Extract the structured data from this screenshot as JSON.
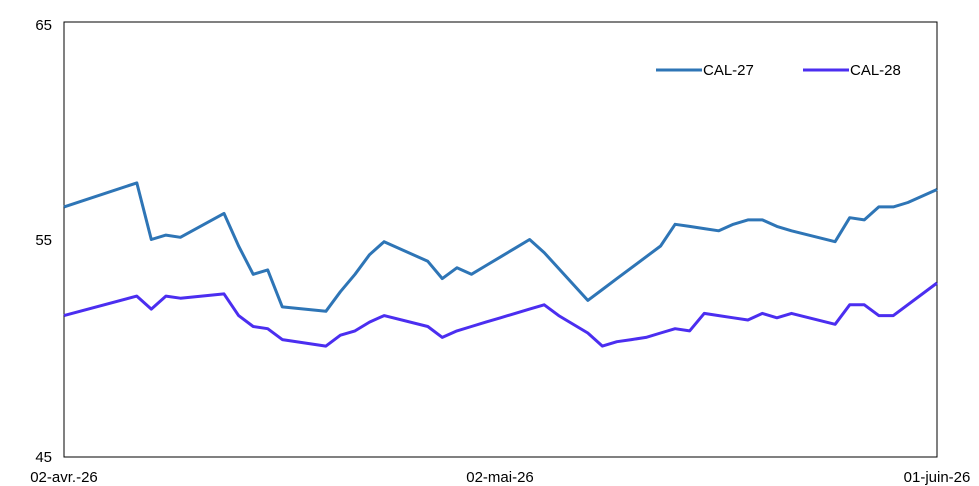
{
  "chart_data": {
    "type": "line",
    "x_tick_labels": [
      "02-avr.-26",
      "02-mai-26",
      "01-juin-26"
    ],
    "y_tick_labels": [
      "45",
      "55",
      "65"
    ],
    "ylim": [
      45,
      65
    ],
    "xlim_days": [
      0,
      60
    ],
    "grid": false,
    "legend_position": "top-right",
    "series": [
      {
        "name": "CAL-27",
        "color": "#2e75b6",
        "x": [
          0,
          5,
          6,
          7,
          8,
          11,
          12,
          13,
          14,
          15,
          18,
          19,
          20,
          21,
          22,
          25,
          26,
          27,
          28,
          29,
          30,
          31,
          32,
          33,
          36,
          37,
          38,
          41,
          42,
          43,
          44,
          45,
          46,
          47,
          48,
          49,
          50,
          53,
          54,
          55,
          56,
          57,
          58,
          60
        ],
        "values": [
          56.5,
          57.6,
          55.0,
          55.2,
          55.1,
          56.2,
          54.7,
          53.4,
          53.6,
          51.9,
          51.7,
          52.6,
          53.4,
          54.3,
          54.9,
          54.0,
          53.2,
          53.7,
          53.4,
          53.8,
          54.2,
          54.6,
          55.0,
          54.4,
          52.2,
          52.7,
          53.2,
          54.7,
          55.7,
          55.6,
          55.5,
          55.4,
          55.7,
          55.9,
          55.9,
          55.6,
          55.4,
          54.9,
          56.0,
          55.9,
          56.5,
          56.5,
          56.7,
          57.3
        ]
      },
      {
        "name": "CAL-28",
        "color": "#4b2ef0",
        "x": [
          0,
          5,
          6,
          7,
          8,
          11,
          12,
          13,
          14,
          15,
          18,
          19,
          20,
          21,
          22,
          25,
          26,
          27,
          28,
          29,
          30,
          31,
          32,
          33,
          34,
          36,
          37,
          38,
          39,
          40,
          41,
          42,
          43,
          44,
          45,
          46,
          47,
          48,
          49,
          50,
          53,
          54,
          55,
          56,
          57,
          60
        ],
        "values": [
          51.5,
          52.4,
          51.8,
          52.4,
          52.3,
          52.5,
          51.5,
          51.0,
          50.9,
          50.4,
          50.1,
          50.6,
          50.8,
          51.2,
          51.5,
          51.0,
          50.5,
          50.8,
          51.0,
          51.2,
          51.4,
          51.6,
          51.8,
          52.0,
          51.5,
          50.7,
          50.1,
          50.3,
          50.4,
          50.5,
          50.7,
          50.9,
          50.8,
          51.6,
          51.5,
          51.4,
          51.3,
          51.6,
          51.4,
          51.6,
          51.1,
          52.0,
          52.0,
          51.5,
          51.5,
          53.0
        ]
      }
    ]
  }
}
